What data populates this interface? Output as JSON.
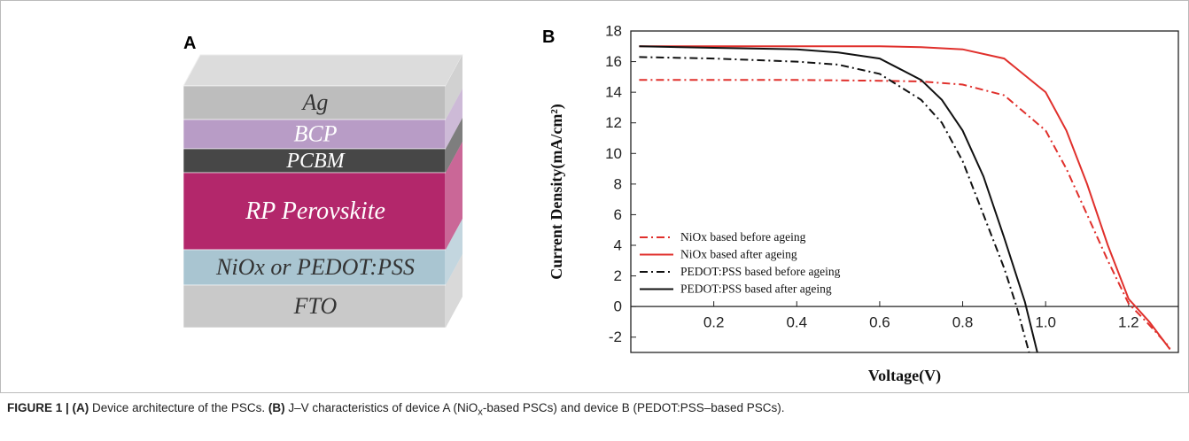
{
  "panel_a": {
    "label": "A",
    "layers": [
      {
        "label": "Ag",
        "color": "#bdbdbd",
        "text_color": "#333333"
      },
      {
        "label": "BCP",
        "color": "#b89cc6",
        "text_color": "#ffffff"
      },
      {
        "label": "PCBM",
        "color": "#474747",
        "text_color": "#ffffff"
      },
      {
        "label": "RP Perovskite",
        "color": "#b3276b",
        "text_color": "#ffffff"
      },
      {
        "label": "NiOx or PEDOT:PSS",
        "color": "#a9c5d1",
        "text_color": "#333333"
      },
      {
        "label": "FTO",
        "color": "#c9c9c9",
        "text_color": "#333333"
      }
    ]
  },
  "panel_b": {
    "label": "B"
  },
  "chart_data": {
    "type": "line",
    "x_label": "Voltage(V)",
    "y_label": "Current Density(mA/cm²)",
    "xlim": [
      0,
      1.32
    ],
    "ylim": [
      -3,
      18
    ],
    "xticks": [
      0.2,
      0.4,
      0.6,
      0.8,
      {
        "value": 1,
        "label": "1.0"
      },
      1.2
    ],
    "yticks": [
      -2,
      0,
      2,
      4,
      6,
      8,
      10,
      12,
      14,
      16,
      18
    ],
    "legend": "lower left",
    "series": [
      {
        "name": "NiOx based before ageing",
        "color": "#e0302c",
        "style": "dashdot",
        "x": [
          0.02,
          0.2,
          0.4,
          0.6,
          0.7,
          0.8,
          0.9,
          1.0,
          1.05,
          1.1,
          1.15,
          1.2,
          1.25,
          1.3
        ],
        "values": [
          14.8,
          14.8,
          14.8,
          14.75,
          14.7,
          14.5,
          13.8,
          11.5,
          9.0,
          6.0,
          3.0,
          0.2,
          -1.2,
          -2.7
        ]
      },
      {
        "name": "NiOx based after ageing",
        "color": "#e0302c",
        "style": "solid",
        "x": [
          0.02,
          0.2,
          0.4,
          0.6,
          0.7,
          0.8,
          0.9,
          1.0,
          1.05,
          1.1,
          1.15,
          1.2,
          1.25,
          1.3
        ],
        "values": [
          17.0,
          17.0,
          17.0,
          17.0,
          16.95,
          16.8,
          16.2,
          14.0,
          11.5,
          8.0,
          4.0,
          0.5,
          -1.0,
          -2.8
        ]
      },
      {
        "name": "PEDOT:PSS based before ageing",
        "color": "#111111",
        "style": "dashdot",
        "x": [
          0.02,
          0.2,
          0.4,
          0.5,
          0.6,
          0.7,
          0.75,
          0.8,
          0.85,
          0.9,
          0.93,
          0.96
        ],
        "values": [
          16.3,
          16.2,
          16.0,
          15.8,
          15.2,
          13.5,
          12.0,
          9.5,
          6.0,
          2.5,
          0.0,
          -3.0
        ]
      },
      {
        "name": "PEDOT:PSS based after ageing",
        "color": "#111111",
        "style": "solid",
        "x": [
          0.02,
          0.2,
          0.4,
          0.5,
          0.6,
          0.7,
          0.75,
          0.8,
          0.85,
          0.9,
          0.95,
          0.98
        ],
        "values": [
          17.0,
          16.9,
          16.8,
          16.6,
          16.2,
          14.8,
          13.5,
          11.5,
          8.5,
          4.5,
          0.3,
          -3.0
        ]
      }
    ]
  },
  "caption": {
    "segments": [
      "FIGURE 1 | ",
      "(A)",
      " Device architecture of the PSCs. ",
      "(B)",
      " J–V characteristics of device A (NiO",
      "x",
      "-based PSCs) and device B (PEDOT:PSS–based PSCs)."
    ]
  }
}
